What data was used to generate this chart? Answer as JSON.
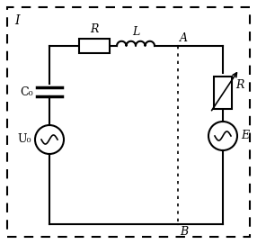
{
  "background": "#ffffff",
  "line_color": "#000000",
  "label_I": "I",
  "label_A": "A",
  "label_B": "B",
  "label_R_top": "R",
  "label_L": "L",
  "label_C0": "C₀",
  "label_U0": "U₀",
  "label_R_right": "R",
  "label_E": "E",
  "figsize": [
    2.86,
    2.71
  ],
  "dpi": 100
}
